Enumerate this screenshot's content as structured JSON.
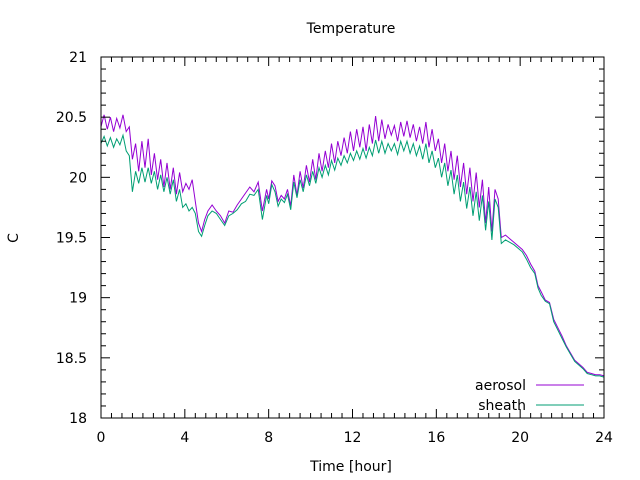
{
  "chart_data": {
    "type": "line",
    "title": "Temperature",
    "xlabel": "Time [hour]",
    "ylabel": "C",
    "xlim": [
      0,
      24
    ],
    "ylim": [
      18,
      21
    ],
    "xticks": [
      0,
      4,
      8,
      12,
      16,
      20,
      24
    ],
    "yticks": [
      18,
      18.5,
      19,
      19.5,
      20,
      20.5,
      21
    ],
    "grid": false,
    "legend_position": "bottom-right",
    "series": [
      {
        "name": "aerosol",
        "color": "#9400d3",
        "x": [
          0,
          0.15,
          0.3,
          0.45,
          0.6,
          0.75,
          0.9,
          1.05,
          1.2,
          1.35,
          1.5,
          1.65,
          1.8,
          1.95,
          2.1,
          2.25,
          2.4,
          2.55,
          2.7,
          2.85,
          3.0,
          3.15,
          3.3,
          3.45,
          3.6,
          3.75,
          3.9,
          4.05,
          4.2,
          4.35,
          4.5,
          4.65,
          4.8,
          4.95,
          5.1,
          5.3,
          5.5,
          5.7,
          5.9,
          6.1,
          6.3,
          6.5,
          6.7,
          6.9,
          7.1,
          7.3,
          7.5,
          7.7,
          7.9,
          8.0,
          8.15,
          8.3,
          8.45,
          8.6,
          8.75,
          8.9,
          9.05,
          9.2,
          9.35,
          9.5,
          9.65,
          9.8,
          9.95,
          10.1,
          10.25,
          10.4,
          10.55,
          10.7,
          10.85,
          11.0,
          11.15,
          11.3,
          11.45,
          11.6,
          11.75,
          11.9,
          12.05,
          12.2,
          12.35,
          12.5,
          12.65,
          12.8,
          12.95,
          13.1,
          13.25,
          13.4,
          13.55,
          13.7,
          13.85,
          14.0,
          14.15,
          14.3,
          14.45,
          14.6,
          14.75,
          14.9,
          15.05,
          15.2,
          15.35,
          15.5,
          15.65,
          15.8,
          15.95,
          16.1,
          16.25,
          16.4,
          16.55,
          16.7,
          16.85,
          17.0,
          17.15,
          17.3,
          17.45,
          17.6,
          17.75,
          17.9,
          18.05,
          18.2,
          18.35,
          18.5,
          18.65,
          18.8,
          18.95,
          19.1,
          19.3,
          19.5,
          19.7,
          19.9,
          20.1,
          20.3,
          20.5,
          20.7,
          20.85,
          21.0,
          21.2,
          21.4,
          21.6,
          21.8,
          22.0,
          22.2,
          22.4,
          22.6,
          22.8,
          23.0,
          23.2,
          23.4,
          23.6,
          23.8,
          24.0
        ],
        "y": [
          20.42,
          20.52,
          20.4,
          20.5,
          20.38,
          20.49,
          20.41,
          20.52,
          20.38,
          20.42,
          20.15,
          20.28,
          20.05,
          20.3,
          20.08,
          20.32,
          20.02,
          20.2,
          19.98,
          20.15,
          19.92,
          20.12,
          19.9,
          20.08,
          19.86,
          20.04,
          19.88,
          19.95,
          19.9,
          19.98,
          19.8,
          19.62,
          19.55,
          19.65,
          19.72,
          19.77,
          19.72,
          19.68,
          19.62,
          19.72,
          19.71,
          19.77,
          19.82,
          19.87,
          19.92,
          19.88,
          19.96,
          19.72,
          19.9,
          19.82,
          19.97,
          19.93,
          19.8,
          19.85,
          19.82,
          19.9,
          19.76,
          20.02,
          19.85,
          20.05,
          19.91,
          20.1,
          19.96,
          20.15,
          19.98,
          20.2,
          20.05,
          20.22,
          20.08,
          20.28,
          20.12,
          20.3,
          20.18,
          20.33,
          20.2,
          20.38,
          20.22,
          20.4,
          20.25,
          20.42,
          20.22,
          20.44,
          20.28,
          20.51,
          20.3,
          20.48,
          20.32,
          20.44,
          20.35,
          20.43,
          20.3,
          20.46,
          20.34,
          20.47,
          20.33,
          20.44,
          20.3,
          20.42,
          20.28,
          20.46,
          20.25,
          20.4,
          20.22,
          20.32,
          20.12,
          20.28,
          20.05,
          20.22,
          19.98,
          20.18,
          19.92,
          20.12,
          19.86,
          20.08,
          19.8,
          20.04,
          19.75,
          19.98,
          19.62,
          19.92,
          19.55,
          19.9,
          19.82,
          19.5,
          19.52,
          19.49,
          19.46,
          19.43,
          19.4,
          19.35,
          19.28,
          19.22,
          19.1,
          19.05,
          18.98,
          18.96,
          18.82,
          18.75,
          18.68,
          18.6,
          18.54,
          18.48,
          18.45,
          18.42,
          18.38,
          18.37,
          18.36,
          18.36,
          18.35
        ]
      },
      {
        "name": "sheath",
        "color": "#009e73",
        "x": [
          0,
          0.15,
          0.3,
          0.45,
          0.6,
          0.75,
          0.9,
          1.05,
          1.2,
          1.35,
          1.5,
          1.65,
          1.8,
          1.95,
          2.1,
          2.25,
          2.4,
          2.55,
          2.7,
          2.85,
          3.0,
          3.15,
          3.3,
          3.45,
          3.6,
          3.75,
          3.9,
          4.05,
          4.2,
          4.35,
          4.5,
          4.65,
          4.8,
          4.95,
          5.1,
          5.3,
          5.5,
          5.7,
          5.9,
          6.1,
          6.3,
          6.5,
          6.7,
          6.9,
          7.1,
          7.3,
          7.5,
          7.7,
          7.9,
          8.0,
          8.15,
          8.3,
          8.45,
          8.6,
          8.75,
          8.9,
          9.05,
          9.2,
          9.35,
          9.5,
          9.65,
          9.8,
          9.95,
          10.1,
          10.25,
          10.4,
          10.55,
          10.7,
          10.85,
          11.0,
          11.15,
          11.3,
          11.45,
          11.6,
          11.75,
          11.9,
          12.05,
          12.2,
          12.35,
          12.5,
          12.65,
          12.8,
          12.95,
          13.1,
          13.25,
          13.4,
          13.55,
          13.7,
          13.85,
          14.0,
          14.15,
          14.3,
          14.45,
          14.6,
          14.75,
          14.9,
          15.05,
          15.2,
          15.35,
          15.5,
          15.65,
          15.8,
          15.95,
          16.1,
          16.25,
          16.4,
          16.55,
          16.7,
          16.85,
          17.0,
          17.15,
          17.3,
          17.45,
          17.6,
          17.75,
          17.9,
          18.05,
          18.2,
          18.35,
          18.5,
          18.65,
          18.8,
          18.95,
          19.1,
          19.3,
          19.5,
          19.7,
          19.9,
          20.1,
          20.3,
          20.5,
          20.7,
          20.85,
          21.0,
          21.2,
          21.4,
          21.6,
          21.8,
          22.0,
          22.2,
          22.4,
          22.6,
          22.8,
          23.0,
          23.2,
          23.4,
          23.6,
          23.8,
          24.0
        ],
        "y": [
          20.28,
          20.34,
          20.26,
          20.33,
          20.25,
          20.32,
          20.27,
          20.35,
          20.22,
          20.18,
          19.88,
          20.05,
          19.95,
          20.08,
          19.96,
          20.08,
          19.95,
          20.05,
          19.9,
          20.02,
          19.88,
          20.0,
          19.86,
          19.98,
          19.8,
          19.9,
          19.75,
          19.78,
          19.72,
          19.75,
          19.7,
          19.55,
          19.51,
          19.6,
          19.68,
          19.72,
          19.7,
          19.65,
          19.6,
          19.68,
          19.7,
          19.73,
          19.78,
          19.8,
          19.86,
          19.85,
          19.9,
          19.65,
          19.85,
          19.78,
          19.94,
          19.88,
          19.76,
          19.82,
          19.79,
          19.86,
          19.73,
          19.96,
          19.83,
          19.98,
          19.88,
          20.02,
          19.93,
          20.05,
          19.95,
          20.08,
          20.0,
          20.1,
          20.02,
          20.14,
          20.06,
          20.16,
          20.1,
          20.18,
          20.12,
          20.2,
          20.14,
          20.22,
          20.15,
          20.24,
          20.16,
          20.25,
          20.18,
          20.31,
          20.2,
          20.3,
          20.2,
          20.28,
          20.22,
          20.28,
          20.19,
          20.3,
          20.22,
          20.3,
          20.2,
          20.28,
          20.18,
          20.26,
          20.15,
          20.28,
          20.12,
          20.22,
          20.08,
          20.16,
          20.0,
          20.12,
          19.93,
          20.06,
          19.86,
          20.02,
          19.8,
          19.96,
          19.74,
          19.92,
          19.68,
          19.88,
          19.64,
          19.85,
          19.56,
          19.8,
          19.48,
          19.82,
          19.75,
          19.45,
          19.48,
          19.46,
          19.44,
          19.41,
          19.38,
          19.32,
          19.25,
          19.2,
          19.08,
          19.02,
          18.97,
          18.95,
          18.8,
          18.73,
          18.66,
          18.59,
          18.53,
          18.47,
          18.44,
          18.41,
          18.37,
          18.36,
          18.35,
          18.35,
          18.34
        ]
      }
    ]
  }
}
